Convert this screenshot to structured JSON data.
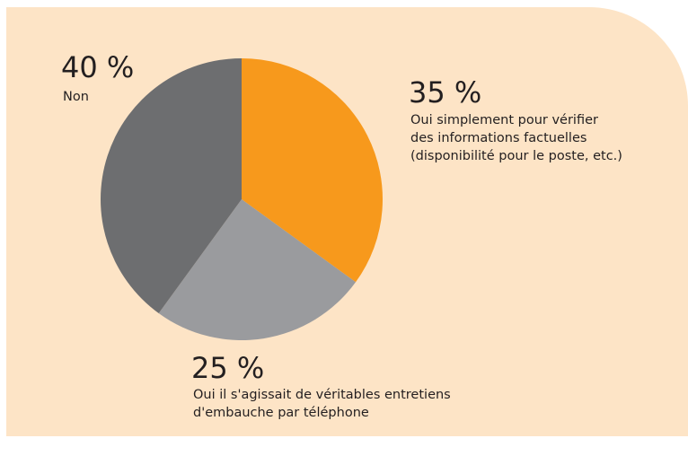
{
  "chart_data": {
    "type": "pie",
    "categories": [
      "Oui simplement pour vérifier\ndes informations factuelles\n(disponibilité pour le poste, etc.)",
      "Oui il s'agissait de véritables entretiens\nd'embauche par téléphone",
      "Non"
    ],
    "values": [
      35,
      25,
      40
    ],
    "value_labels": [
      "35 %",
      "25 %",
      "40 %"
    ],
    "colors": [
      "#f7991c",
      "#9a9b9e",
      "#6d6e70"
    ]
  }
}
